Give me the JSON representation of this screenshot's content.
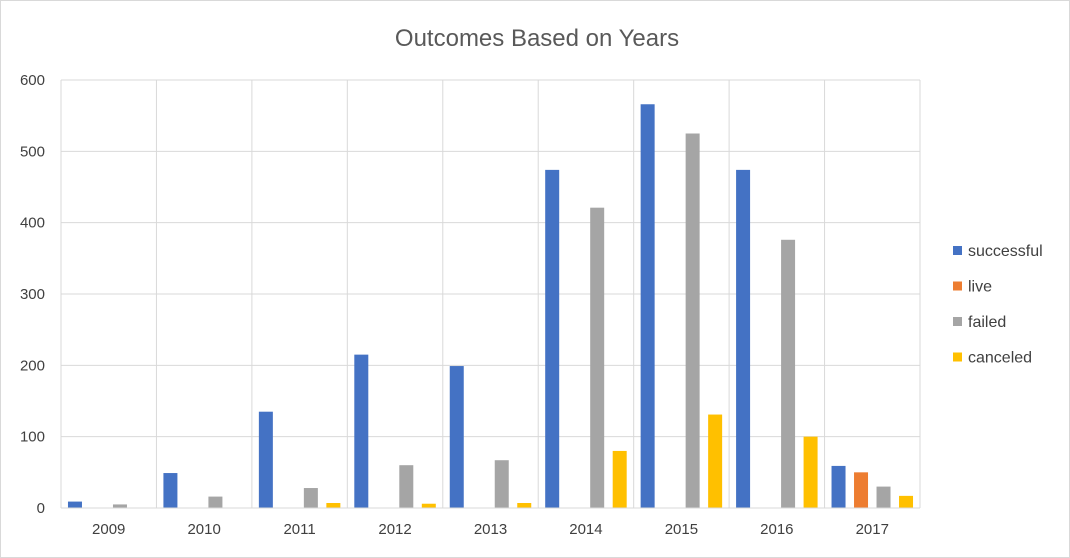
{
  "chart_data": {
    "type": "bar",
    "title": "Outcomes Based on Years",
    "xlabel": "",
    "ylabel": "",
    "categories": [
      "2009",
      "2010",
      "2011",
      "2012",
      "2013",
      "2014",
      "2015",
      "2016",
      "2017"
    ],
    "series": [
      {
        "name": "successful",
        "color": "#4472C4",
        "values": [
          9,
          49,
          135,
          215,
          199,
          474,
          566,
          474,
          59
        ]
      },
      {
        "name": "live",
        "color": "#ED7D31",
        "values": [
          0,
          0,
          0,
          0,
          0,
          0,
          0,
          0,
          50
        ]
      },
      {
        "name": "failed",
        "color": "#A5A5A5",
        "values": [
          5,
          16,
          28,
          60,
          67,
          421,
          525,
          376,
          30
        ]
      },
      {
        "name": "canceled",
        "color": "#FFC000",
        "values": [
          0,
          0,
          7,
          6,
          7,
          80,
          131,
          100,
          17
        ]
      }
    ],
    "ylim": [
      0,
      600
    ],
    "yticks": [
      "0",
      "100",
      "200",
      "300",
      "400",
      "500",
      "600"
    ],
    "grid": true,
    "legend_position": "right"
  }
}
